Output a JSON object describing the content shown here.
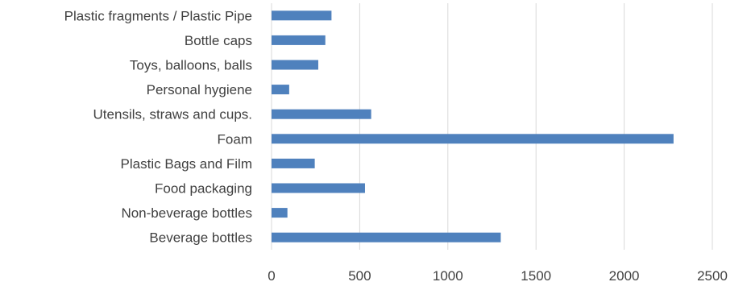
{
  "chart_data": {
    "type": "bar",
    "orientation": "horizontal",
    "categories": [
      "Beverage bottles",
      "Non-beverage bottles",
      "Food packaging ",
      "Plastic Bags and Film",
      "Foam",
      "Utensils, straws and cups.",
      "Personal hygiene",
      "Toys, balloons, balls",
      "Bottle caps",
      "Plastic fragments / Plastic Pipe"
    ],
    "values": [
      1300,
      90,
      530,
      245,
      2280,
      565,
      100,
      265,
      305,
      340
    ],
    "title": "",
    "xlabel": "",
    "ylabel": "",
    "xlim": [
      0,
      2500
    ],
    "x_ticks": [
      "0",
      "500",
      "1000",
      "1500",
      "2000",
      "2500"
    ],
    "grid": "vertical",
    "legend": "none",
    "bar_color": "#4F81BD",
    "grid_color": "#D9D9D9"
  }
}
